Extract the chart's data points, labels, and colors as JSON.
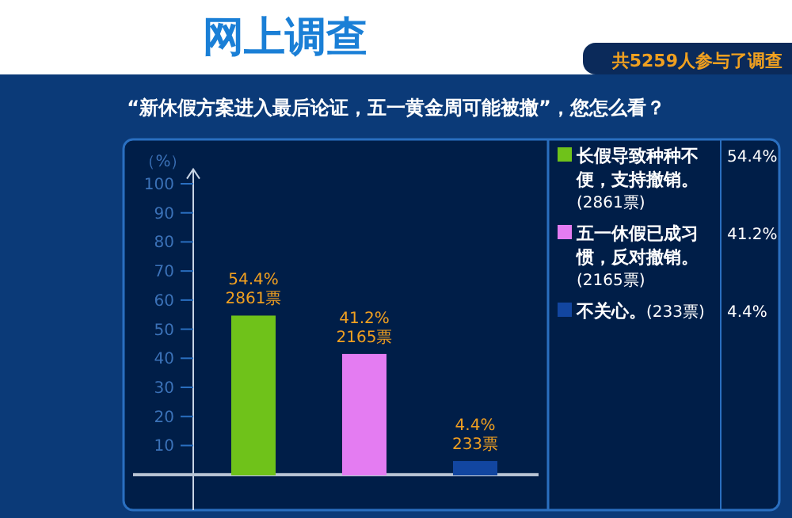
{
  "chart_data": {
    "type": "bar",
    "title": "网上调查",
    "subtitle": "“新休假方案进入最后论证，五一黄金周可能被撤”，您怎么看？",
    "ylabel": "（%）",
    "categories": [
      null,
      null,
      null
    ],
    "series": [
      {
        "name": "长假导致种种不便，支持撤销。",
        "color": "#6fc21a",
        "values": [
          54.4,
          null,
          null
        ]
      },
      {
        "name": "五一休假已成习惯，反对撤销。",
        "color": "#e47cf2",
        "values": [
          null,
          41.2,
          null
        ]
      },
      {
        "name": "不关心。",
        "color": "#1246a0",
        "values": [
          null,
          null,
          4.4
        ]
      }
    ],
    "value_labels": [
      "54.4%\n2861票",
      "41.2%\n2165票",
      "4.4%\n233票"
    ],
    "annotations": [
      "共5259人参与了调查",
      "(2861票)",
      "54.4%",
      "(2165票)",
      "41.2%",
      "(233票)",
      "4.4%"
    ],
    "ylim": [
      0,
      105
    ],
    "yticks": [
      10,
      20,
      30,
      40,
      50,
      60,
      70,
      80,
      90,
      100
    ],
    "legend": "right",
    "grid": false
  }
}
